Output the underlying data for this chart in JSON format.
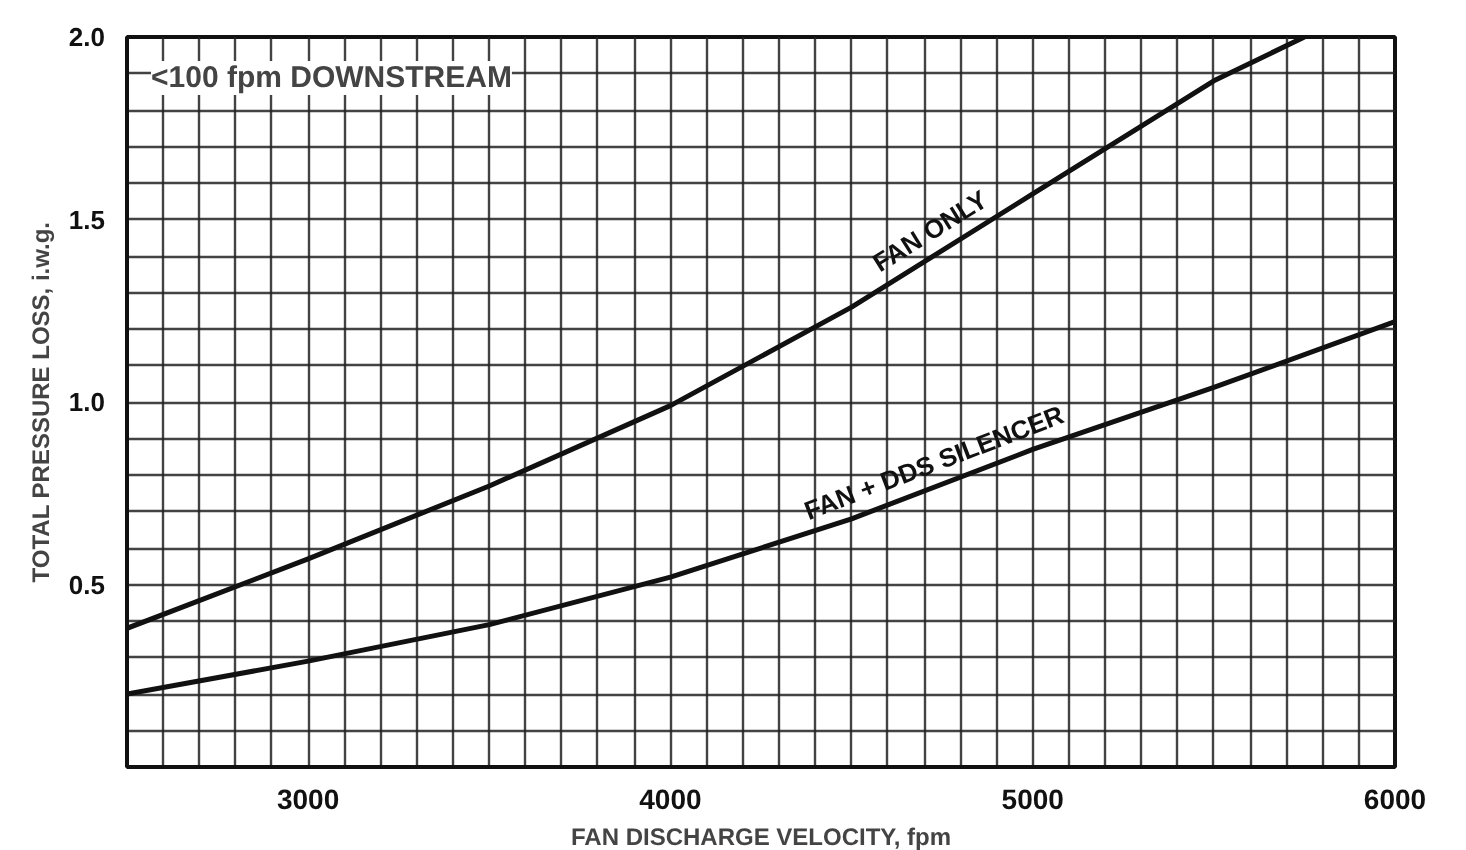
{
  "chart_data": {
    "type": "line",
    "xlabel": "FAN DISCHARGE VELOCITY, fpm",
    "ylabel": "TOTAL PRESSURE LOSS, i.w.g.",
    "annotations": [
      "<100 fpm DOWNSTREAM"
    ],
    "series": [
      {
        "name": "FAN ONLY",
        "color": "#111111",
        "x": [
          2500,
          3000,
          3500,
          4000,
          4500,
          5000,
          5500,
          5750
        ],
        "values": [
          0.38,
          0.57,
          0.77,
          0.99,
          1.26,
          1.57,
          1.88,
          2.0
        ]
      },
      {
        "name": "FAN + DDS SILENCER",
        "color": "#111111",
        "x": [
          2500,
          3000,
          3500,
          4000,
          4500,
          5000,
          5500,
          6000
        ],
        "values": [
          0.2,
          0.29,
          0.39,
          0.52,
          0.68,
          0.87,
          1.04,
          1.22
        ]
      }
    ],
    "xlim": [
      2500,
      6000
    ],
    "ylim": [
      0,
      2.0
    ],
    "xticks": [
      {
        "value": 2500,
        "label": null
      },
      {
        "value": 2600,
        "label": null
      },
      {
        "value": 2700,
        "label": null
      },
      {
        "value": 2800,
        "label": null
      },
      {
        "value": 2900,
        "label": null
      },
      3000,
      {
        "value": 3100,
        "label": null
      },
      {
        "value": 3200,
        "label": null
      },
      {
        "value": 3300,
        "label": null
      },
      {
        "value": 3400,
        "label": null
      },
      {
        "value": 3500,
        "label": null
      },
      {
        "value": 3600,
        "label": null
      },
      {
        "value": 3700,
        "label": null
      },
      {
        "value": 3800,
        "label": null
      },
      {
        "value": 3900,
        "label": null
      },
      4000,
      {
        "value": 4100,
        "label": null
      },
      {
        "value": 4200,
        "label": null
      },
      {
        "value": 4300,
        "label": null
      },
      {
        "value": 4400,
        "label": null
      },
      {
        "value": 4500,
        "label": null
      },
      {
        "value": 4600,
        "label": null
      },
      {
        "value": 4700,
        "label": null
      },
      {
        "value": 4800,
        "label": null
      },
      {
        "value": 4900,
        "label": null
      },
      5000,
      {
        "value": 5100,
        "label": null
      },
      {
        "value": 5200,
        "label": null
      },
      {
        "value": 5300,
        "label": null
      },
      {
        "value": 5400,
        "label": null
      },
      {
        "value": 5500,
        "label": null
      },
      {
        "value": 5600,
        "label": null
      },
      {
        "value": 5700,
        "label": null
      },
      {
        "value": 5800,
        "label": null
      },
      {
        "value": 5900,
        "label": null
      },
      6000
    ],
    "yticks": [
      {
        "value": 0,
        "label": null
      },
      {
        "value": 0.1,
        "label": null
      },
      {
        "value": 0.2,
        "label": null
      },
      {
        "value": 0.3,
        "label": null
      },
      {
        "value": 0.4,
        "label": null
      },
      {
        "value": 0.5,
        "label": "0.5"
      },
      {
        "value": 0.6,
        "label": null
      },
      {
        "value": 0.7,
        "label": null
      },
      {
        "value": 0.8,
        "label": null
      },
      {
        "value": 0.9,
        "label": null
      },
      {
        "value": 1.0,
        "label": "1.0"
      },
      {
        "value": 1.1,
        "label": null
      },
      {
        "value": 1.2,
        "label": null
      },
      {
        "value": 1.3,
        "label": null
      },
      {
        "value": 1.4,
        "label": null
      },
      {
        "value": 1.5,
        "label": "1.5"
      },
      {
        "value": 1.6,
        "label": null
      },
      {
        "value": 1.7,
        "label": null
      },
      {
        "value": 1.8,
        "label": null
      },
      {
        "value": 1.9,
        "label": null
      },
      {
        "value": 2.0,
        "label": "2.0"
      }
    ],
    "grid": true,
    "line_style": "solid",
    "marker": "none"
  }
}
